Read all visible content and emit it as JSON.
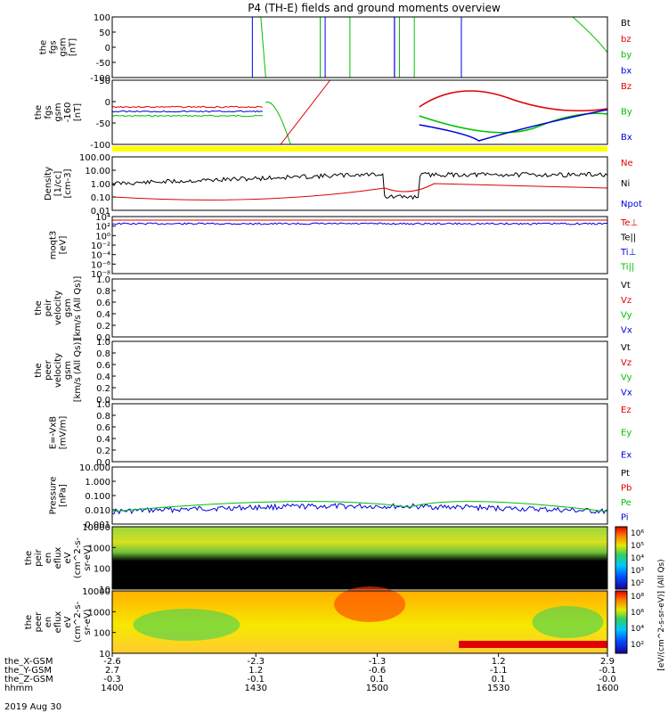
{
  "chart_data": {
    "type": "line",
    "title": "P4 (TH-E) fields and ground moments overview",
    "date_label": "2019 Aug 30",
    "x_ticks": [
      "1400",
      "1430",
      "1500",
      "1530",
      "1600"
    ],
    "orbit_rows": [
      {
        "label": "the_X-GSM",
        "values": [
          "-2.6",
          "-2.3",
          "-1.3",
          "1.2",
          "2.9"
        ]
      },
      {
        "label": "the_Y-GSM",
        "values": [
          "2.7",
          "1.2",
          "-0.6",
          "-1.1",
          "-0.1"
        ]
      },
      {
        "label": "the_Z-GSM",
        "values": [
          "-0.3",
          "-0.1",
          "0.1",
          "0.1",
          "-0.0"
        ]
      },
      {
        "label": "hhmm",
        "values": [
          "1400",
          "1430",
          "1500",
          "1530",
          "1600"
        ]
      }
    ],
    "panels": [
      {
        "id": "fgs",
        "ylabel": [
          "the",
          "fgs",
          "gsm",
          "[nT]"
        ],
        "yticks": [
          "100",
          "50",
          "0",
          "-50",
          "-100"
        ],
        "legend": [
          {
            "text": "Bt",
            "color": "#000000"
          },
          {
            "text": "bz",
            "color": "#e00000"
          },
          {
            "text": "by",
            "color": "#00c000"
          },
          {
            "text": "bx",
            "color": "#0000e0"
          }
        ]
      },
      {
        "id": "fgs2",
        "ylabel": [
          "the",
          "fgs",
          "gsm",
          "-160",
          "[nT]"
        ],
        "yticks": [
          "50",
          "0",
          "-50",
          "-100"
        ],
        "legend": [
          {
            "text": "Bz",
            "color": "#e00000"
          },
          {
            "text": "By",
            "color": "#00c000"
          },
          {
            "text": "Bx",
            "color": "#0000e0"
          }
        ]
      },
      {
        "id": "density",
        "ylabel": [
          "Density",
          "[1/cc]",
          "[cm-3]"
        ],
        "yticks": [
          "100.00",
          "10.00",
          "1.00",
          "0.10",
          "0.01"
        ],
        "legend": [
          {
            "text": "Ne",
            "color": "#e00000"
          },
          {
            "text": "Ni",
            "color": "#000000"
          },
          {
            "text": "Npot",
            "color": "#0000e0"
          }
        ]
      },
      {
        "id": "temp",
        "ylabel": [
          "moqt3",
          "[eV]"
        ],
        "yticks": [
          "10⁴",
          "10²",
          "10⁰",
          "10⁻²",
          "10⁻⁴",
          "10⁻⁶",
          "10⁻⁸"
        ],
        "legend": [
          {
            "text": "Te⊥",
            "color": "#e00000"
          },
          {
            "text": "Te||",
            "color": "#000000"
          },
          {
            "text": "Ti⊥",
            "color": "#0000e0"
          },
          {
            "text": "Ti||",
            "color": "#00c000"
          }
        ]
      },
      {
        "id": "vi",
        "ylabel": [
          "the",
          "peir",
          "velocity",
          "gsm",
          "[km/s (All Qs)]"
        ],
        "yticks": [
          "1.0",
          "0.8",
          "0.6",
          "0.4",
          "0.2",
          "0.0"
        ],
        "legend": [
          {
            "text": "Vt",
            "color": "#000000"
          },
          {
            "text": "Vz",
            "color": "#e00000"
          },
          {
            "text": "Vy",
            "color": "#00c000"
          },
          {
            "text": "Vx",
            "color": "#0000e0"
          }
        ]
      },
      {
        "id": "ve",
        "ylabel": [
          "the",
          "peer",
          "velocity",
          "gsm",
          "[km/s (All Qs)]"
        ],
        "yticks": [
          "1.0",
          "0.8",
          "0.6",
          "0.4",
          "0.2",
          "0.0"
        ],
        "legend": [
          {
            "text": "Vt",
            "color": "#000000"
          },
          {
            "text": "Vz",
            "color": "#e00000"
          },
          {
            "text": "Vy",
            "color": "#00c000"
          },
          {
            "text": "Vx",
            "color": "#0000e0"
          }
        ]
      },
      {
        "id": "efield",
        "ylabel": [
          "E=-VxB",
          "[mV/m]"
        ],
        "yticks": [
          "1.0",
          "0.8",
          "0.6",
          "0.4",
          "0.2",
          "0.0"
        ],
        "legend": [
          {
            "text": "Ez",
            "color": "#e00000"
          },
          {
            "text": "Ey",
            "color": "#00c000"
          },
          {
            "text": "Ex",
            "color": "#0000e0"
          }
        ]
      },
      {
        "id": "pressure",
        "ylabel": [
          "Pressure",
          "[nPa]"
        ],
        "yticks": [
          "10.000",
          "1.000",
          "0.100",
          "0.010",
          "0.001"
        ],
        "legend": [
          {
            "text": "Pt",
            "color": "#000000"
          },
          {
            "text": "Pb",
            "color": "#e00000"
          },
          {
            "text": "Pe",
            "color": "#00c000"
          },
          {
            "text": "Pi",
            "color": "#0000e0"
          }
        ]
      },
      {
        "id": "ispec",
        "ylabel": [
          "the",
          "peir",
          "en",
          "eflux",
          "eV",
          "(cm^2-s-",
          "sr-eV)"
        ],
        "yticks": [
          "10000",
          "1000",
          "100",
          "10"
        ]
      },
      {
        "id": "espec",
        "ylabel": [
          "the",
          "peer",
          "en",
          "eflux",
          "eV",
          "(cm^2-s-",
          "sr-eV)"
        ],
        "yticks": [
          "10000",
          "1000",
          "100",
          "10"
        ]
      }
    ],
    "colorbar_ticks_ion": [
      "10⁶",
      "10⁵",
      "10⁴",
      "10³",
      "10²"
    ],
    "colorbar_ticks_ele": [
      "10⁸",
      "10⁶",
      "10⁴",
      "10²"
    ],
    "colorbar_label": "[eV/(cm^2-s-sr-eV)] (All Qs)"
  }
}
